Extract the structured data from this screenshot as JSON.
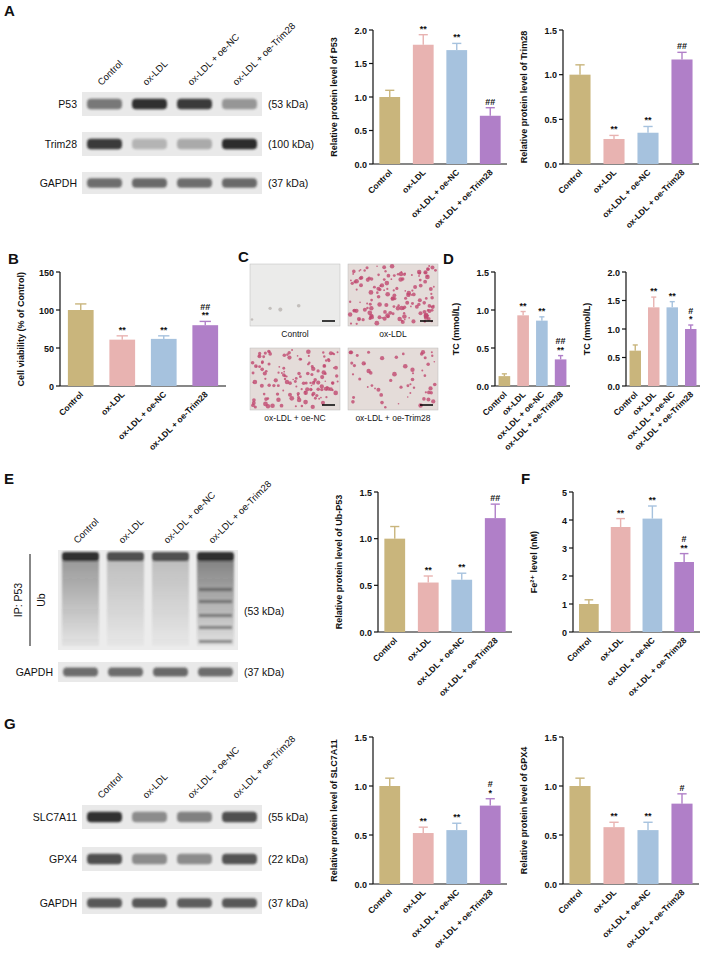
{
  "chart_data": [
    {
      "type": "bar",
      "ylabel": "Relative protein level of P53",
      "categories": [
        "Control",
        "ox-LDL",
        "ox-LDL + oe-NC",
        "ox-LDL + oe-Trim28"
      ],
      "values": [
        1.0,
        1.78,
        1.7,
        0.72
      ],
      "errors": [
        0.1,
        0.15,
        0.1,
        0.12
      ],
      "annotations": [
        null,
        [
          "**"
        ],
        [
          "**"
        ],
        [
          "##"
        ]
      ],
      "colors": [
        "#c9b57c",
        "#e8b3b1",
        "#a6c2de",
        "#b07fc8"
      ],
      "ylim": [
        0,
        2
      ],
      "yticks": [
        {
          "value": 0,
          "label": "0.0"
        },
        0.5,
        {
          "value": 1,
          "label": "1.0"
        },
        1.5,
        {
          "value": 2,
          "label": "2.0"
        }
      ]
    },
    {
      "type": "bar",
      "ylabel": "Relative protein level of Trim28",
      "categories": [
        "Control",
        "ox-LDL",
        "ox-LDL + oe-NC",
        "ox-LDL + oe-Trim28"
      ],
      "values": [
        1.0,
        0.28,
        0.35,
        1.17
      ],
      "errors": [
        0.11,
        0.04,
        0.07,
        0.08
      ],
      "annotations": [
        null,
        [
          "**"
        ],
        [
          "**"
        ],
        [
          "##"
        ]
      ],
      "colors": [
        "#c9b57c",
        "#e8b3b1",
        "#a6c2de",
        "#b07fc8"
      ],
      "ylim": [
        0,
        1.5
      ],
      "yticks": [
        {
          "value": 0,
          "label": "0.0"
        },
        0.5,
        {
          "value": 1,
          "label": "1.0"
        },
        1.5
      ]
    },
    {
      "type": "bar",
      "panel": "B",
      "ylabel": "Cell viability (% of Control)",
      "categories": [
        "Control",
        "ox-LDL",
        "ox-LDL + oe-NC",
        "ox-LDL + oe-Trim28"
      ],
      "values": [
        100,
        61,
        62,
        80
      ],
      "errors": [
        8,
        5,
        4,
        5
      ],
      "annotations": [
        null,
        [
          "**"
        ],
        [
          "**"
        ],
        [
          "##",
          "**"
        ]
      ],
      "colors": [
        "#c9b57c",
        "#e8b3b1",
        "#a6c2de",
        "#b07fc8"
      ],
      "ylim": [
        0,
        150
      ],
      "yticks": [
        0,
        50,
        100,
        150
      ]
    },
    {
      "type": "bar",
      "panel": "D",
      "ylabel": "TC (mmol/L)",
      "categories": [
        "Control",
        "ox-LDL",
        "ox-LDL + oe-NC",
        "ox-LDL + oe-Trim28"
      ],
      "values": [
        0.13,
        0.93,
        0.86,
        0.35
      ],
      "errors": [
        0.03,
        0.05,
        0.05,
        0.05
      ],
      "annotations": [
        null,
        [
          "**"
        ],
        [
          "**"
        ],
        [
          "##",
          "**"
        ]
      ],
      "colors": [
        "#c9b57c",
        "#e8b3b1",
        "#a6c2de",
        "#b07fc8"
      ],
      "ylim": [
        0,
        1.5
      ],
      "yticks": [
        {
          "value": 0,
          "label": "0.0"
        },
        0.5,
        {
          "value": 1,
          "label": "1.0"
        },
        1.5
      ]
    },
    {
      "type": "bar",
      "ylabel": "TC (mmol/L)",
      "categories": [
        "Control",
        "ox-LDL",
        "ox-LDL + oe-NC",
        "ox-LDL + oe-Trim28"
      ],
      "values": [
        0.62,
        1.38,
        1.38,
        1.0
      ],
      "errors": [
        0.1,
        0.18,
        0.1,
        0.07
      ],
      "annotations": [
        null,
        [
          "**"
        ],
        [
          "**"
        ],
        [
          "#",
          "*"
        ]
      ],
      "colors": [
        "#c9b57c",
        "#e8b3b1",
        "#a6c2de",
        "#b07fc8"
      ],
      "ylim": [
        0,
        2
      ],
      "yticks": [
        {
          "value": 0,
          "label": "0.0"
        },
        0.5,
        {
          "value": 1,
          "label": "1.0"
        },
        1.5,
        {
          "value": 2,
          "label": "2.0"
        }
      ]
    },
    {
      "type": "bar",
      "ylabel": "Relative protein level of Ub-P53",
      "categories": [
        "Control",
        "ox-LDL",
        "ox-LDL + oe-NC",
        "ox-LDL + oe-Trim28"
      ],
      "values": [
        1.0,
        0.53,
        0.56,
        1.22
      ],
      "errors": [
        0.13,
        0.07,
        0.07,
        0.15
      ],
      "annotations": [
        null,
        [
          "**"
        ],
        [
          "**"
        ],
        [
          "##"
        ]
      ],
      "colors": [
        "#c9b57c",
        "#e8b3b1",
        "#a6c2de",
        "#b07fc8"
      ],
      "ylim": [
        0,
        1.5
      ],
      "yticks": [
        {
          "value": 0,
          "label": "0.0"
        },
        0.5,
        {
          "value": 1,
          "label": "1.0"
        },
        1.5
      ]
    },
    {
      "type": "bar",
      "panel": "F",
      "ylabel": "Fe²⁺ level (nM)",
      "categories": [
        "Control",
        "ox-LDL",
        "ox-LDL + oe-NC",
        "ox-LDL + oe-Trim28"
      ],
      "values": [
        1.0,
        3.75,
        4.05,
        2.5
      ],
      "errors": [
        0.15,
        0.3,
        0.45,
        0.3
      ],
      "annotations": [
        null,
        [
          "**"
        ],
        [
          "**"
        ],
        [
          "#",
          "**"
        ]
      ],
      "colors": [
        "#c9b57c",
        "#e8b3b1",
        "#a6c2de",
        "#b07fc8"
      ],
      "ylim": [
        0,
        5
      ],
      "yticks": [
        0,
        1,
        2,
        3,
        4,
        5
      ]
    },
    {
      "type": "bar",
      "ylabel": "Relative protein level of SLC7A11",
      "categories": [
        "Control",
        "ox-LDL",
        "ox-LDL + oe-NC",
        "ox-LDL + oe-Trim28"
      ],
      "values": [
        1.0,
        0.52,
        0.55,
        0.8
      ],
      "errors": [
        0.08,
        0.06,
        0.07,
        0.07
      ],
      "annotations": [
        null,
        [
          "**"
        ],
        [
          "**"
        ],
        [
          "#",
          "*"
        ]
      ],
      "colors": [
        "#c9b57c",
        "#e8b3b1",
        "#a6c2de",
        "#b07fc8"
      ],
      "ylim": [
        0,
        1.5
      ],
      "yticks": [
        {
          "value": 0,
          "label": "0.0"
        },
        0.5,
        {
          "value": 1,
          "label": "1.0"
        },
        1.5
      ]
    },
    {
      "type": "bar",
      "ylabel": "Relative protein level of GPX4",
      "categories": [
        "Control",
        "ox-LDL",
        "ox-LDL + oe-NC",
        "ox-LDL + oe-Trim28"
      ],
      "values": [
        1.0,
        0.58,
        0.55,
        0.82
      ],
      "errors": [
        0.08,
        0.05,
        0.08,
        0.1
      ],
      "annotations": [
        null,
        [
          "**"
        ],
        [
          "**"
        ],
        [
          "#"
        ]
      ],
      "colors": [
        "#c9b57c",
        "#e8b3b1",
        "#a6c2de",
        "#b07fc8"
      ],
      "ylim": [
        0,
        1.5
      ],
      "yticks": [
        {
          "value": 0,
          "label": "0.0"
        },
        0.5,
        {
          "value": 1,
          "label": "1.0"
        },
        1.5
      ]
    }
  ],
  "blots": [
    {
      "panel": "A",
      "lanes": [
        "Control",
        "ox-LDL",
        "ox-LDL + oe-NC",
        "ox-LDL + oe-Trim28"
      ],
      "bands": [
        {
          "label": "P53",
          "size": "(53 kDa)"
        },
        {
          "label": "Trim28",
          "size": "(100 kDa)"
        },
        {
          "label": "GAPDH",
          "size": "(37 kDa)"
        }
      ]
    },
    {
      "panel": "E",
      "lanes": [
        "Control",
        "ox-LDL",
        "ox-LDL + oe-NC",
        "ox-LDL + oe-Trim28"
      ],
      "ip": "IP: P53",
      "probe": "Ub",
      "probe_size": "(53 kDa)",
      "bands": [
        {
          "label": "GAPDH",
          "size": "(37 kDa)"
        }
      ]
    },
    {
      "panel": "G",
      "lanes": [
        "Control",
        "ox-LDL",
        "ox-LDL + oe-NC",
        "ox-LDL + oe-Trim28"
      ],
      "bands": [
        {
          "label": "SLC7A11",
          "size": "(55 kDa)"
        },
        {
          "label": "GPX4",
          "size": "(22 kDa)"
        },
        {
          "label": "GAPDH",
          "size": "(37 kDa)"
        }
      ]
    }
  ],
  "micrographs": {
    "panel": "C",
    "captions": [
      "Control",
      "ox-LDL",
      "ox-LDL + oe-NC",
      "ox-LDL + oe-Trim28"
    ]
  }
}
